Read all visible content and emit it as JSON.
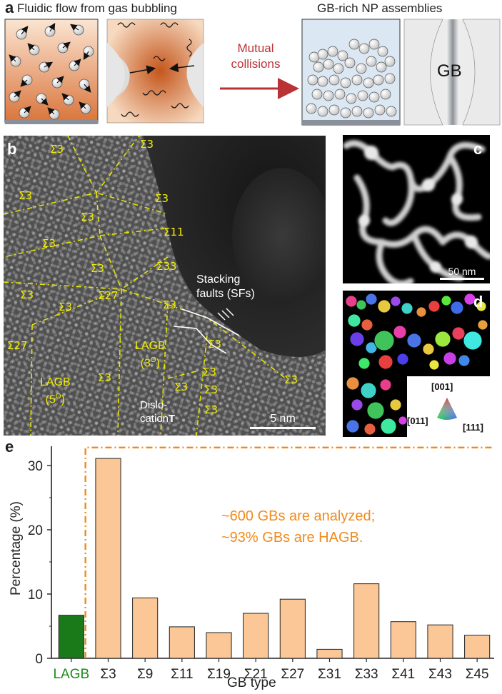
{
  "panel_a": {
    "letter": "a",
    "title_left": "Fluidic flow from gas bubbling",
    "title_right": "GB-rich NP assemblies",
    "arrow_label_line1": "Mutual",
    "arrow_label_line2": "collisions",
    "gb_label": "GB",
    "colors": {
      "fluid": "#d9743a",
      "substrate": "#8a9099",
      "arrow": "#b83236",
      "assembly_bg": "#dbe8f3",
      "gb_stripe": "#9aa0a6"
    }
  },
  "panel_b": {
    "letter": "b",
    "sigma_labels": [
      "Σ3",
      "Σ3",
      "Σ3",
      "Σ3",
      "Σ3",
      "Σ11",
      "Σ3",
      "Σ33",
      "Σ3",
      "Σ3",
      "Σ27",
      "Σ3",
      "Σ3",
      "Σ27",
      "Σ3",
      "Σ3",
      "Σ3",
      "Σ3",
      "Σ3",
      "Σ3",
      "Σ3"
    ],
    "lagb_5": "LAGB",
    "lagb_5_angle": "(5O)",
    "lagb_3": "LAGB",
    "lagb_3_angle": "(3O)",
    "sf_line1": "Stacking",
    "sf_line2": "faults (SFs)",
    "disloc_line1": "Dislo-",
    "disloc_line2": "cation",
    "dislocation_symbol": "T",
    "scale_bar": "5 nm",
    "colors": {
      "label": "#f2ee00",
      "gb_line": "#e8e400"
    }
  },
  "panel_c": {
    "letter": "c",
    "scale_bar": "50 nm"
  },
  "panel_d": {
    "letter": "d",
    "ipf_top": "[001]",
    "ipf_left": "[011]",
    "ipf_right": "[111]"
  },
  "panel_e": {
    "letter": "e",
    "annotation_line1": "~600 GBs are analyzed;",
    "annotation_line2": "~93% GBs are HAGB.",
    "colors": {
      "lagb_bar": "#1a7a1a",
      "hagb_bar": "#fbc796",
      "annotation": "#f08a1c",
      "lagb_label": "#1a8a1a"
    }
  },
  "chart_data": {
    "type": "bar",
    "categories": [
      "LAGB",
      "Σ3",
      "Σ9",
      "Σ11",
      "Σ19",
      "Σ21",
      "Σ27",
      "Σ31",
      "Σ33",
      "Σ41",
      "Σ43",
      "Σ45"
    ],
    "values": [
      6.7,
      31.1,
      9.4,
      4.9,
      4.0,
      7.0,
      9.2,
      1.4,
      11.6,
      5.7,
      5.2,
      3.6
    ],
    "xlabel": "GB type",
    "ylabel": "Percentage (%)",
    "ylim": [
      0,
      33
    ],
    "yticks": [
      0,
      10,
      20,
      30
    ],
    "grid": false
  }
}
